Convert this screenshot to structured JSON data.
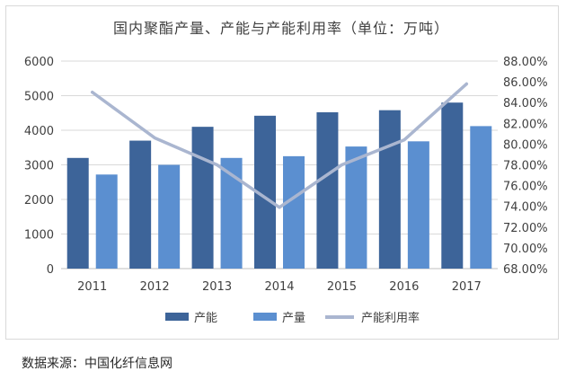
{
  "chart_data": {
    "type": "bar",
    "title": "国内聚酯产量、产能与产能利用率（单位：万吨）",
    "categories": [
      "2011",
      "2012",
      "2013",
      "2014",
      "2015",
      "2016",
      "2017"
    ],
    "series": [
      {
        "name": "产能",
        "type": "bar",
        "axis": "left",
        "color": "#3d6499",
        "values": [
          3200,
          3700,
          4100,
          4420,
          4520,
          4580,
          4800
        ]
      },
      {
        "name": "产量",
        "type": "bar",
        "axis": "left",
        "color": "#5b8fd0",
        "values": [
          2720,
          3000,
          3200,
          3250,
          3530,
          3680,
          4120
        ]
      },
      {
        "name": "产能利用率",
        "type": "line",
        "axis": "right",
        "color": "#aab6d0",
        "values": [
          85.0,
          80.6,
          78.0,
          73.9,
          78.0,
          80.4,
          85.8
        ]
      }
    ],
    "left_axis": {
      "min": 0,
      "max": 6000,
      "step": 1000,
      "tick_labels": [
        "0",
        "1000",
        "2000",
        "3000",
        "4000",
        "5000",
        "6000"
      ]
    },
    "right_axis": {
      "min": 68,
      "max": 88,
      "step": 2,
      "tick_labels": [
        "68.00%",
        "70.00%",
        "72.00%",
        "74.00%",
        "76.00%",
        "78.00%",
        "80.00%",
        "82.00%",
        "84.00%",
        "86.00%",
        "88.00%"
      ]
    },
    "grid": true,
    "legend_position": "bottom",
    "source": "数据来源：中国化纤信息网"
  }
}
